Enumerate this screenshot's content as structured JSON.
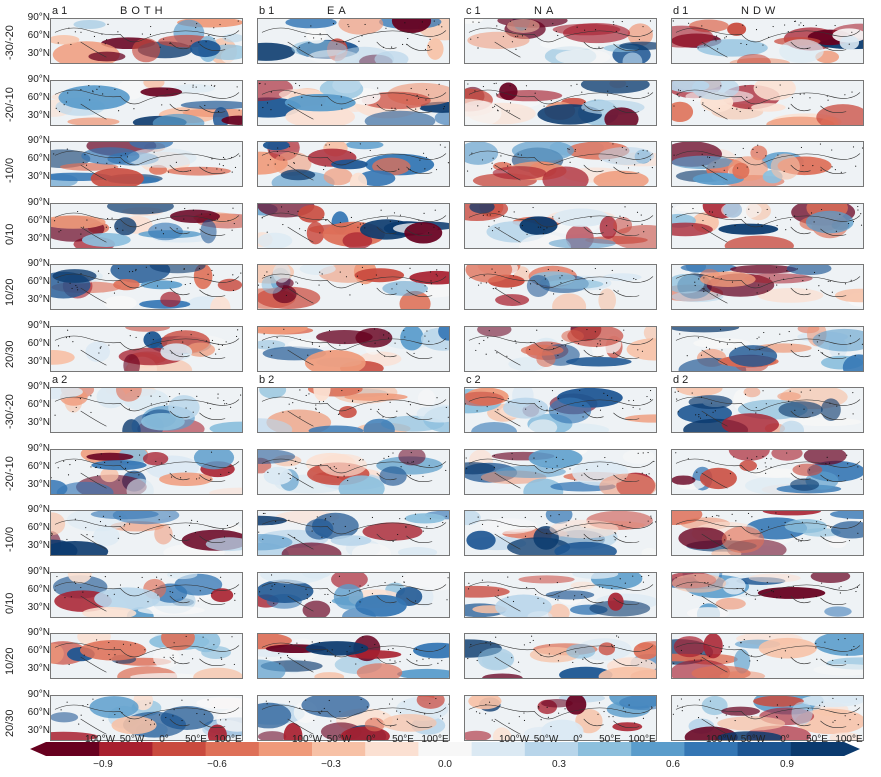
{
  "figure": {
    "columns": [
      {
        "id": "a",
        "title": "BOTH"
      },
      {
        "id": "b",
        "title": "EA"
      },
      {
        "id": "c",
        "title": "NA"
      },
      {
        "id": "d",
        "title": "NDW"
      }
    ],
    "groups": [
      {
        "suffix": "1"
      },
      {
        "suffix": "2"
      }
    ],
    "row_labels": [
      "-30/-20",
      "-20/-10",
      "-10/0",
      "0/10",
      "10/20",
      "20/30"
    ],
    "lat_labels": [
      "90°N",
      "60°N",
      "30°N"
    ],
    "lon_labels": [
      "100°W",
      "50°W",
      "0°",
      "50°E",
      "100°E"
    ]
  },
  "colorbar": {
    "ticks": [
      "−0.9",
      "−0.6",
      "−0.3",
      "0.0",
      "0.3",
      "0.6",
      "0.9"
    ],
    "range": [
      -1.05,
      1.05
    ],
    "colors": [
      "#67001f",
      "#a8202f",
      "#c94a3e",
      "#de7058",
      "#ef9a7a",
      "#f7c1a6",
      "#fbe0d2",
      "#f7f7f7",
      "#dbe9f3",
      "#b8d5ea",
      "#8cbfdd",
      "#5a9ccb",
      "#3476b4",
      "#1c5592",
      "#0b3a6e"
    ]
  }
}
